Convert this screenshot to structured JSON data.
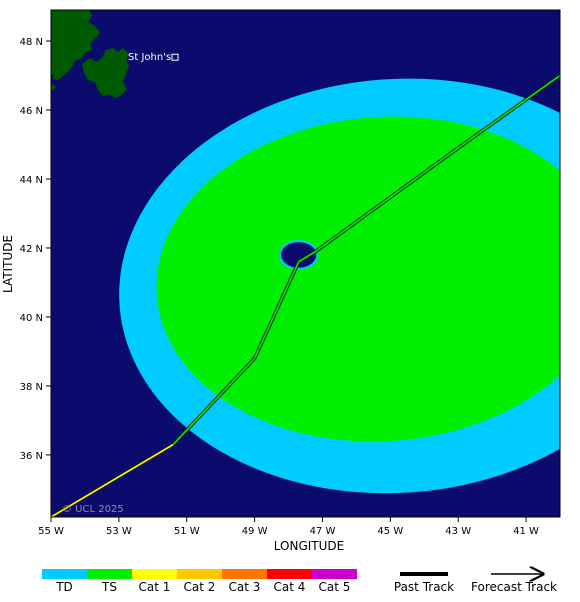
{
  "map": {
    "lon_range": [
      -55,
      -40
    ],
    "lat_range": [
      34.2,
      48.9
    ],
    "background_color": "#0b0b6e",
    "land_color": "#005a00",
    "x_ticks": [
      {
        "value": -55,
        "label": "55 W"
      },
      {
        "value": -53,
        "label": "53 W"
      },
      {
        "value": -51,
        "label": "51 W"
      },
      {
        "value": -49,
        "label": "49 W"
      },
      {
        "value": -47,
        "label": "47 W"
      },
      {
        "value": -45,
        "label": "45 W"
      },
      {
        "value": -43,
        "label": "43 W"
      },
      {
        "value": -41,
        "label": "41 W"
      }
    ],
    "y_ticks": [
      {
        "value": 36,
        "label": "36 N"
      },
      {
        "value": 38,
        "label": "38 N"
      },
      {
        "value": 40,
        "label": "40 N"
      },
      {
        "value": 42,
        "label": "42 N"
      },
      {
        "value": 44,
        "label": "44 N"
      },
      {
        "value": 46,
        "label": "46 N"
      },
      {
        "value": 48,
        "label": "48 N"
      }
    ],
    "xlabel": "LONGITUDE",
    "ylabel": "LATITUDE",
    "city": {
      "name": "St John's",
      "lon": -52.7,
      "lat": 47.56
    },
    "copyright": "© UCL 2025",
    "wind_fields": [
      {
        "category": "TD",
        "color": "#00ccff",
        "center": [
          -44.8,
          40.9
        ],
        "rx_deg": 8.2,
        "ry_deg": 6.0
      },
      {
        "category": "TS",
        "color": "#00ee00",
        "center": [
          -45.2,
          41.1
        ],
        "rx_deg": 6.7,
        "ry_deg": 4.7
      }
    ],
    "eye": {
      "center": [
        -47.7,
        41.8
      ],
      "rx_deg": 0.55,
      "ry_deg": 0.4
    },
    "track": [
      {
        "lon": -55.0,
        "lat": 34.2,
        "category": "Cat 1"
      },
      {
        "lon": -51.4,
        "lat": 36.3,
        "category": "TS"
      },
      {
        "lon": -49.0,
        "lat": 38.8,
        "category": "TS"
      },
      {
        "lon": -47.7,
        "lat": 41.6,
        "category": "TS"
      },
      {
        "lon": -47.2,
        "lat": 41.9,
        "category": "TS"
      },
      {
        "lon": -43.0,
        "lat": 44.9,
        "category": "TS"
      },
      {
        "lon": -40.0,
        "lat": 47.0,
        "category": "TS"
      }
    ]
  },
  "legend": {
    "categories": [
      {
        "label": "TD",
        "color": "#00ccff"
      },
      {
        "label": "TS",
        "color": "#00ee00"
      },
      {
        "label": "Cat 1",
        "color": "#ffff00"
      },
      {
        "label": "Cat 2",
        "color": "#ffc800"
      },
      {
        "label": "Cat 3",
        "color": "#ff7700"
      },
      {
        "label": "Cat 4",
        "color": "#ff0000"
      },
      {
        "label": "Cat 5",
        "color": "#cc00cc"
      }
    ],
    "past_track_label": "Past Track",
    "forecast_track_label": "Forecast Track"
  }
}
